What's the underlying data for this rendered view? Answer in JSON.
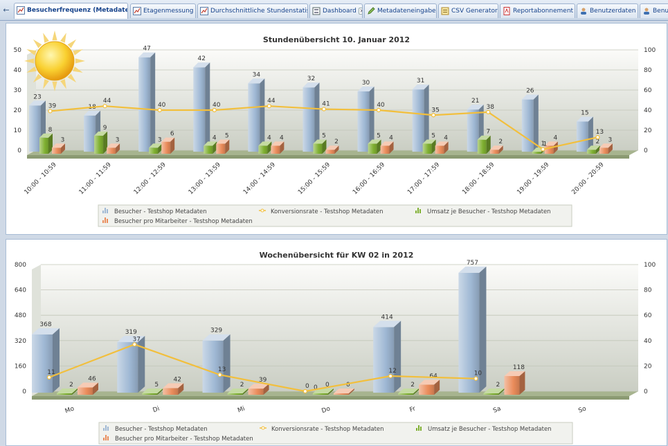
{
  "tabs": [
    {
      "label": "Besucherfrequenz (Metadaten)",
      "icon": "line-chart-icon",
      "active": true
    },
    {
      "label": "Etagenmessung",
      "icon": "line-chart-icon",
      "active": false
    },
    {
      "label": "Durchschnittliche Stundenstatistik",
      "icon": "line-chart-icon",
      "active": false
    },
    {
      "label": "Dashboard",
      "icon": "dashboard-icon",
      "active": false
    },
    {
      "label": "Metadateneingabe",
      "icon": "pencil-icon",
      "active": false
    },
    {
      "label": "CSV Generator",
      "icon": "csv-icon",
      "active": false
    },
    {
      "label": "Reportabonnement",
      "icon": "pdf-icon",
      "active": false
    },
    {
      "label": "Benutzerdaten",
      "icon": "users-icon",
      "active": false
    },
    {
      "label": "Benut",
      "icon": "users-icon",
      "active": false
    }
  ],
  "chart_data": [
    {
      "type": "bar",
      "title": "Stundenübersicht 10. Januar 2012",
      "categories": [
        "10:00 - 10:59",
        "11:00 - 11:59",
        "12:00 - 12:59",
        "13:00 - 13:59",
        "14:00 - 14:59",
        "15:00 - 15:59",
        "16:00 - 16:59",
        "17:00 - 17:59",
        "18:00 - 18:59",
        "19:00 - 19:59",
        "20:00 - 20:59"
      ],
      "series": [
        {
          "name": "Besucher - Testshop Metadaten",
          "type": "bar",
          "axis": "left",
          "color": "#9fb8d4",
          "values": [
            23,
            18,
            47,
            42,
            34,
            32,
            30,
            31,
            21,
            26,
            15
          ]
        },
        {
          "name": "Konversionsrate - Testshop Metadaten",
          "type": "line",
          "axis": "right",
          "color": "#f2bf3c",
          "values": [
            39,
            44,
            40,
            40,
            44,
            41,
            40,
            35,
            38,
            1,
            13
          ]
        },
        {
          "name": "Umsatz je Besucher - Testshop Metadaten",
          "type": "bar",
          "axis": "left",
          "color": "#7fb031",
          "values": [
            8,
            9,
            3,
            4,
            4,
            5,
            5,
            5,
            7,
            1,
            2
          ]
        },
        {
          "name": "Besucher pro Mitarbeiter - Testshop Metadaten",
          "type": "bar",
          "axis": "left",
          "color": "#ea8c5b",
          "values": [
            3,
            3,
            6,
            5,
            4,
            2,
            4,
            4,
            2,
            4,
            3
          ]
        }
      ],
      "y_left": {
        "min": 0,
        "max": 50,
        "ticks": [
          0,
          10,
          20,
          30,
          40,
          50
        ]
      },
      "y_right": {
        "min": 0,
        "max": 100,
        "ticks": [
          0,
          20,
          40,
          60,
          80,
          100
        ]
      },
      "decoration": "sun-icon"
    },
    {
      "type": "bar",
      "title": "Wochenübersicht für KW 02 in 2012",
      "categories": [
        "Mo",
        "Di",
        "Mi",
        "Do",
        "Fr",
        "Sa",
        "So"
      ],
      "series": [
        {
          "name": "Besucher - Testshop Metadaten",
          "type": "bar",
          "axis": "left",
          "color": "#9fb8d4",
          "values": [
            368,
            319,
            329,
            0,
            414,
            757,
            null
          ]
        },
        {
          "name": "Konversionsrate - Testshop Metadaten",
          "type": "line",
          "axis": "right",
          "color": "#f2bf3c",
          "values": [
            11,
            37,
            13,
            0,
            12,
            10,
            null
          ]
        },
        {
          "name": "Umsatz je Besucher - Testshop Metadaten",
          "type": "bar",
          "axis": "left",
          "color": "#7fb031",
          "values": [
            2,
            5,
            2,
            0,
            2,
            2,
            null
          ]
        },
        {
          "name": "Besucher pro Mitarbeiter - Testshop Metadaten",
          "type": "bar",
          "axis": "left",
          "color": "#ea8c5b",
          "values": [
            46,
            42,
            39,
            0,
            64,
            118,
            null
          ]
        }
      ],
      "y_left": {
        "min": 0,
        "max": 800,
        "ticks": [
          0,
          160,
          320,
          480,
          640,
          800
        ]
      },
      "y_right": {
        "min": 0,
        "max": 100,
        "ticks": [
          0,
          20,
          40,
          60,
          80,
          100
        ]
      }
    }
  ]
}
